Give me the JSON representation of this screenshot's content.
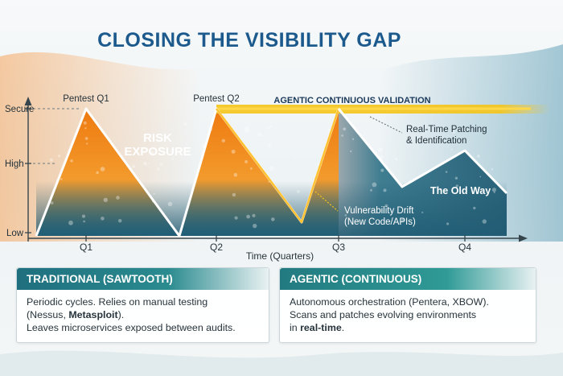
{
  "title": "CLOSING THE VISIBILITY GAP",
  "colors": {
    "title": "#1c5a8e",
    "traditional_fill": "#f08a1c",
    "agentic_fill": "#2f6e86",
    "continuous_line": "#f5c518",
    "card_header": "#2a8b8f"
  },
  "chart_data": {
    "type": "line",
    "y_axis": {
      "levels": [
        "Low",
        "High",
        "Secure"
      ]
    },
    "x_axis": {
      "label": "Time (Quarters)",
      "ticks": [
        "Q1",
        "Q2",
        "Q3",
        "Q4"
      ]
    },
    "series": [
      {
        "name": "Traditional (Sawtooth)",
        "points": [
          {
            "q": 0.0,
            "level": "Low"
          },
          {
            "q": 1.0,
            "level": "Secure"
          },
          {
            "q": 2.0,
            "level": "Low"
          },
          {
            "q": 2.35,
            "level": "Secure"
          },
          {
            "q": 3.3,
            "level": "Low-Mid"
          },
          {
            "q": 4.0,
            "level": "Secure"
          }
        ]
      },
      {
        "name": "The Old Way",
        "points": [
          {
            "q": 4.0,
            "level": "Secure"
          },
          {
            "q": 4.7,
            "level": "Mid"
          },
          {
            "q": 5.4,
            "level": "High"
          },
          {
            "q": 6.0,
            "level": "Mid"
          }
        ]
      }
    ],
    "annotations": {
      "pentest_q1": "Pentest Q1",
      "pentest_q2": "Pentest Q2",
      "continuous": "AGENTIC CONTINUOUS VALIDATION",
      "risk_line1": "RISK",
      "risk_line2": "EXPOSURE",
      "patching_line1": "Real-Time Patching",
      "patching_line2": "& Identification",
      "old_way": "The Old Way",
      "drift_line1": "Vulnerability Drift",
      "drift_line2": "(New Code/APIs)"
    }
  },
  "cards": {
    "traditional": {
      "header": "TRADITIONAL (SAWTOOTH)",
      "line1": "Periodic cycles. Relies on manual testing",
      "line2_a": "(Nessus, ",
      "line2_b": "Metasploit",
      "line2_c": ").",
      "line3": "Leaves microservices exposed between audits."
    },
    "agentic": {
      "header": "AGENTIC (CONTINUOUS)",
      "line1": "Autonomous orchestration (Pentera, XBOW).",
      "line2": "Scans and patches evolving environments",
      "line3_a": "in ",
      "line3_b": "real-time",
      "line3_c": "."
    }
  }
}
